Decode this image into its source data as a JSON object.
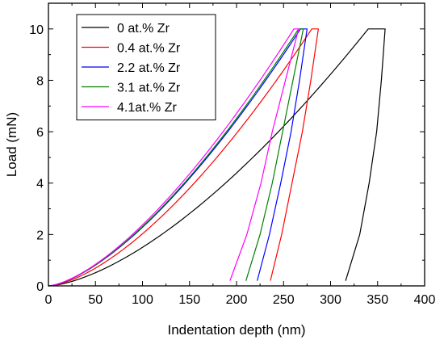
{
  "chart_data": {
    "type": "line",
    "title": "",
    "xlabel": "Indentation depth (nm)",
    "ylabel": "Load (mN)",
    "xlim": [
      0,
      400
    ],
    "ylim": [
      0,
      11
    ],
    "xticks": [
      0,
      50,
      100,
      150,
      200,
      250,
      300,
      350,
      400
    ],
    "yticks": [
      0,
      2,
      4,
      6,
      8,
      10
    ],
    "grid": false,
    "legend_position": "top-left",
    "series": [
      {
        "name": "0 at.% Zr",
        "color": "#000000",
        "loading": {
          "h_max": 340,
          "p_max": 10,
          "exponent": 1.55
        },
        "hold_end": 358,
        "unloading": [
          [
            358,
            10
          ],
          [
            354,
            8
          ],
          [
            349,
            6
          ],
          [
            341,
            4
          ],
          [
            331,
            2
          ],
          [
            316,
            0.2
          ]
        ]
      },
      {
        "name": "0.4 at.% Zr",
        "color": "#ff0000",
        "loading": {
          "h_max": 280,
          "p_max": 10,
          "exponent": 1.55
        },
        "hold_end": 287,
        "unloading": [
          [
            287,
            10
          ],
          [
            279,
            8
          ],
          [
            270,
            6
          ],
          [
            259,
            4
          ],
          [
            248,
            2
          ],
          [
            236,
            0.2
          ]
        ]
      },
      {
        "name": "2.2 at.% Zr",
        "color": "#0000ff",
        "loading": {
          "h_max": 268,
          "p_max": 10,
          "exponent": 1.5
        },
        "hold_end": 275,
        "unloading": [
          [
            275,
            10
          ],
          [
            267,
            8
          ],
          [
            258,
            6
          ],
          [
            247,
            4
          ],
          [
            235,
            2
          ],
          [
            222,
            0.2
          ]
        ]
      },
      {
        "name": "3.1 at.% Zr",
        "color": "#008000",
        "loading": {
          "h_max": 266,
          "p_max": 10,
          "exponent": 1.5
        },
        "hold_end": 271,
        "unloading": [
          [
            271,
            10
          ],
          [
            260,
            8
          ],
          [
            249,
            6
          ],
          [
            238,
            4
          ],
          [
            225,
            2
          ],
          [
            210,
            0.2
          ]
        ]
      },
      {
        "name": "4.1at.% Zr",
        "color": "#ff00ff",
        "loading": {
          "h_max": 261,
          "p_max": 10,
          "exponent": 1.5
        },
        "hold_end": 266,
        "unloading": [
          [
            266,
            10
          ],
          [
            252,
            8
          ],
          [
            238,
            6
          ],
          [
            226,
            4
          ],
          [
            211,
            2
          ],
          [
            193,
            0.2
          ]
        ]
      }
    ]
  }
}
